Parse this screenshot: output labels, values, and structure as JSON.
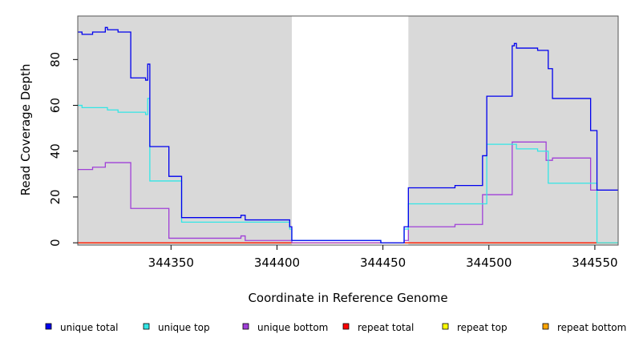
{
  "chart_data": {
    "type": "line",
    "xlabel": "Coordinate in Reference Genome",
    "ylabel": "Read Coverage Depth",
    "xlim": [
      344306,
      344561
    ],
    "ylim": [
      -1,
      99
    ],
    "x_ticks": [
      344350,
      344400,
      344450,
      344500,
      344550
    ],
    "y_ticks": [
      0,
      20,
      40,
      60,
      80
    ],
    "shaded_regions": [
      {
        "x0": 344306,
        "x1": 344407,
        "color": "#d9d9d9"
      },
      {
        "x0": 344462,
        "x1": 344561,
        "color": "#d9d9d9"
      }
    ],
    "legend_position": "bottom",
    "series": [
      {
        "name": "unique total",
        "color": "#0000ee",
        "points": [
          [
            344306,
            92
          ],
          [
            344308,
            91
          ],
          [
            344313,
            92
          ],
          [
            344319,
            94
          ],
          [
            344320,
            93
          ],
          [
            344325,
            92
          ],
          [
            344331,
            72
          ],
          [
            344338,
            71
          ],
          [
            344339,
            78
          ],
          [
            344340,
            42
          ],
          [
            344349,
            29
          ],
          [
            344355,
            11
          ],
          [
            344383,
            12
          ],
          [
            344385,
            10
          ],
          [
            344406,
            7
          ],
          [
            344407,
            1
          ],
          [
            344449,
            0
          ],
          [
            344460,
            7
          ],
          [
            344462,
            24
          ],
          [
            344484,
            25
          ],
          [
            344497,
            38
          ],
          [
            344499,
            64
          ],
          [
            344511,
            86
          ],
          [
            344512,
            87
          ],
          [
            344513,
            85
          ],
          [
            344523,
            84
          ],
          [
            344528,
            76
          ],
          [
            344530,
            63
          ],
          [
            344548,
            49
          ],
          [
            344551,
            23
          ],
          [
            344561,
            23
          ]
        ]
      },
      {
        "name": "unique top",
        "color": "#33e6e6",
        "points": [
          [
            344306,
            60
          ],
          [
            344308,
            59
          ],
          [
            344320,
            58
          ],
          [
            344325,
            57
          ],
          [
            344338,
            56
          ],
          [
            344339,
            63
          ],
          [
            344340,
            27
          ],
          [
            344355,
            9
          ],
          [
            344383,
            9
          ],
          [
            344385,
            9
          ],
          [
            344406,
            6
          ],
          [
            344407,
            1
          ],
          [
            344449,
            0
          ],
          [
            344460,
            6
          ],
          [
            344462,
            17
          ],
          [
            344484,
            17
          ],
          [
            344497,
            17
          ],
          [
            344499,
            43
          ],
          [
            344511,
            43
          ],
          [
            344512,
            43
          ],
          [
            344513,
            41
          ],
          [
            344523,
            40
          ],
          [
            344528,
            26
          ],
          [
            344548,
            26
          ],
          [
            344551,
            0
          ],
          [
            344561,
            0
          ]
        ]
      },
      {
        "name": "unique bottom",
        "color": "#a040d8",
        "points": [
          [
            344306,
            32
          ],
          [
            344313,
            33
          ],
          [
            344319,
            35
          ],
          [
            344331,
            15
          ],
          [
            344349,
            2
          ],
          [
            344383,
            3
          ],
          [
            344385,
            1
          ],
          [
            344407,
            0
          ],
          [
            344449,
            0
          ],
          [
            344460,
            1
          ],
          [
            344462,
            7
          ],
          [
            344484,
            8
          ],
          [
            344497,
            21
          ],
          [
            344511,
            44
          ],
          [
            344527,
            36
          ],
          [
            344530,
            37
          ],
          [
            344548,
            23
          ],
          [
            344561,
            23
          ]
        ]
      },
      {
        "name": "repeat total",
        "color": "#ff0000",
        "points": [
          [
            344306,
            0
          ],
          [
            344561,
            0
          ]
        ]
      },
      {
        "name": "repeat top",
        "color": "#ffff00",
        "points": [
          [
            344306,
            0
          ],
          [
            344561,
            0
          ]
        ]
      },
      {
        "name": "repeat bottom",
        "color": "#ffa500",
        "points": [
          [
            344306,
            0
          ],
          [
            344561,
            0
          ]
        ]
      }
    ]
  }
}
